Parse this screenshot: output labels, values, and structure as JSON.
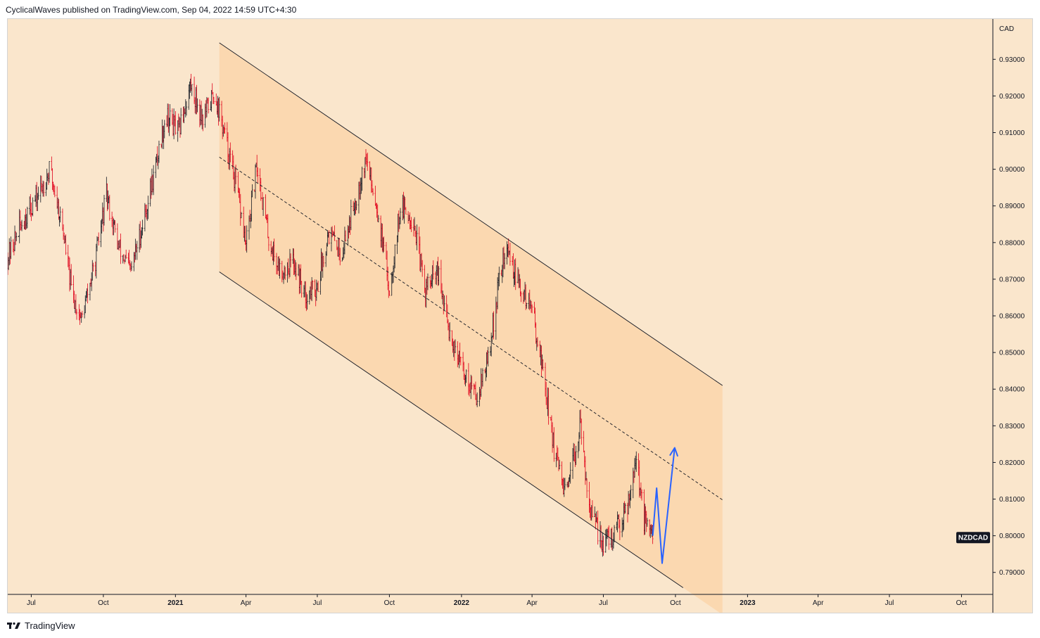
{
  "header": {
    "text": "CyclicalWaves published on TradingView.com, Sep 04, 2022 14:59 UTC+4:30"
  },
  "footer": {
    "brand": "TradingView"
  },
  "chart_data": {
    "type": "candlestick",
    "symbol_label": "NZDCAD",
    "currency_label": "CAD",
    "x": [
      "Jul",
      "Oct",
      "2021",
      "Apr",
      "Jul",
      "Oct",
      "2022",
      "Apr",
      "Jul",
      "Oct",
      "2023",
      "Apr",
      "Jul",
      "Oct"
    ],
    "x_bold": [
      "2021",
      "2022",
      "2023"
    ],
    "y_ticks": [
      "0.93000",
      "0.92000",
      "0.91000",
      "0.90000",
      "0.89000",
      "0.88000",
      "0.87000",
      "0.86000",
      "0.85000",
      "0.84000",
      "0.83000",
      "0.82000",
      "0.81000",
      "0.80000",
      "0.79000"
    ],
    "ylim": [
      0.784,
      0.941
    ],
    "last_price": 0.7995,
    "colors": {
      "up": "#131722",
      "down": "#e0001a",
      "channel_fill": "#fbd8b0",
      "background": "#fae6cc",
      "projection": "#2962ff"
    },
    "price_path": [
      [
        "2020-06-01",
        0.876
      ],
      [
        "2020-06-20",
        0.886
      ],
      [
        "2020-07-10",
        0.893
      ],
      [
        "2020-07-25",
        0.9
      ],
      [
        "2020-08-10",
        0.884
      ],
      [
        "2020-08-22",
        0.866
      ],
      [
        "2020-09-03",
        0.859
      ],
      [
        "2020-09-20",
        0.874
      ],
      [
        "2020-10-05",
        0.893
      ],
      [
        "2020-10-20",
        0.879
      ],
      [
        "2020-11-05",
        0.872
      ],
      [
        "2020-11-20",
        0.885
      ],
      [
        "2020-12-05",
        0.899
      ],
      [
        "2020-12-20",
        0.915
      ],
      [
        "2021-01-05",
        0.91
      ],
      [
        "2021-01-20",
        0.923
      ],
      [
        "2021-02-05",
        0.914
      ],
      [
        "2021-02-20",
        0.921
      ],
      [
        "2021-03-05",
        0.909
      ],
      [
        "2021-03-20",
        0.895
      ],
      [
        "2021-04-01",
        0.879
      ],
      [
        "2021-04-15",
        0.901
      ],
      [
        "2021-05-01",
        0.88
      ],
      [
        "2021-05-15",
        0.872
      ],
      [
        "2021-06-01",
        0.875
      ],
      [
        "2021-06-15",
        0.866
      ],
      [
        "2021-07-01",
        0.868
      ],
      [
        "2021-07-15",
        0.883
      ],
      [
        "2021-08-01",
        0.877
      ],
      [
        "2021-08-15",
        0.889
      ],
      [
        "2021-09-01",
        0.903
      ],
      [
        "2021-09-15",
        0.89
      ],
      [
        "2021-10-01",
        0.867
      ],
      [
        "2021-10-15",
        0.89
      ],
      [
        "2021-11-01",
        0.886
      ],
      [
        "2021-11-15",
        0.867
      ],
      [
        "2021-12-01",
        0.872
      ],
      [
        "2021-12-15",
        0.857
      ],
      [
        "2022-01-01",
        0.846
      ],
      [
        "2022-01-20",
        0.838
      ],
      [
        "2022-02-05",
        0.849
      ],
      [
        "2022-02-20",
        0.873
      ],
      [
        "2022-03-01",
        0.878
      ],
      [
        "2022-03-15",
        0.868
      ],
      [
        "2022-04-01",
        0.862
      ],
      [
        "2022-04-15",
        0.845
      ],
      [
        "2022-05-01",
        0.821
      ],
      [
        "2022-05-15",
        0.81
      ],
      [
        "2022-06-01",
        0.83
      ],
      [
        "2022-06-15",
        0.806
      ],
      [
        "2022-07-01",
        0.798
      ],
      [
        "2022-07-15",
        0.8
      ],
      [
        "2022-08-01",
        0.809
      ],
      [
        "2022-08-12",
        0.822
      ],
      [
        "2022-08-22",
        0.804
      ],
      [
        "2022-09-02",
        0.7995
      ]
    ],
    "channel": {
      "upper": [
        [
          "2021-02-26",
          0.9345
        ],
        [
          "2022-11-30",
          0.841
        ]
      ],
      "lower": [
        [
          "2021-02-26",
          0.872
        ],
        [
          "2022-11-30",
          0.7785
        ]
      ],
      "mid_dashed": [
        [
          "2021-02-26",
          0.9033
        ],
        [
          "2022-11-30",
          0.8098
        ]
      ]
    },
    "projection": [
      [
        "2022-09-02",
        0.8
      ],
      [
        "2022-09-07",
        0.813
      ],
      [
        "2022-09-14",
        0.7925
      ],
      [
        "2022-09-30",
        0.824
      ]
    ]
  }
}
